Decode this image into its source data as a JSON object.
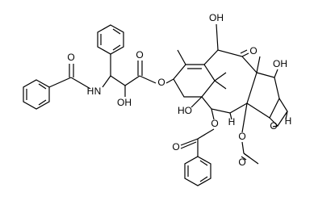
{
  "labels": [
    "O",
    "H",
    "N",
    "O",
    "OH",
    "O",
    "OH",
    "O",
    "OH",
    "HO",
    "H",
    "O",
    "O",
    "O",
    "O",
    "O",
    "H"
  ]
}
